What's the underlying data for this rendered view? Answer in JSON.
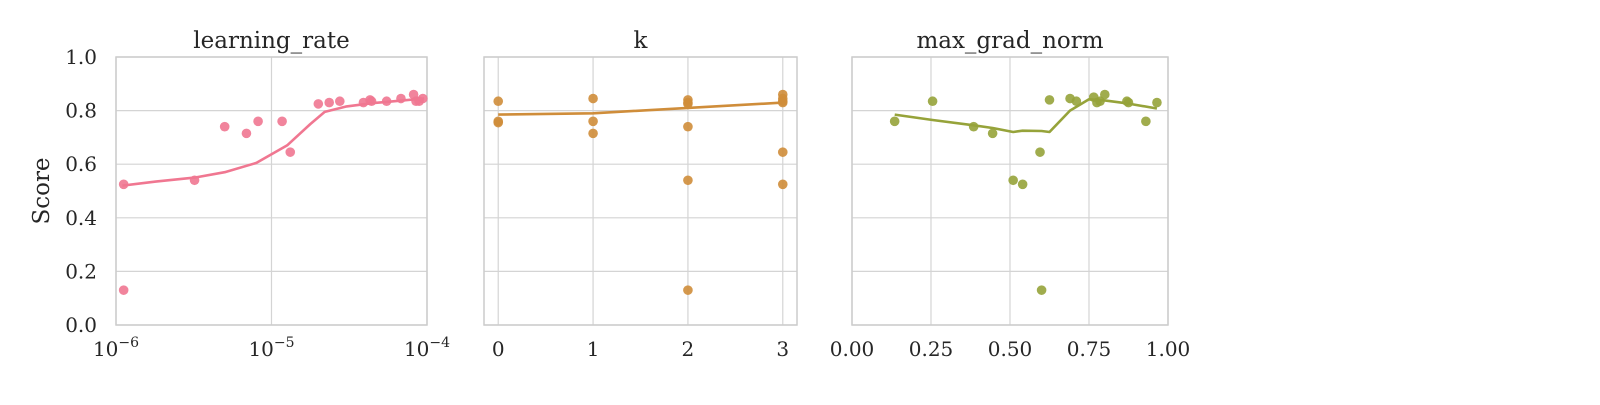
{
  "chart_data": [
    {
      "type": "scatter",
      "title": "learning_rate",
      "xlabel": "",
      "ylabel": "Score",
      "xscale": "log",
      "xlim": [
        1e-06,
        0.0001
      ],
      "ylim": [
        0,
        1
      ],
      "x_tick_labels": [
        {
          "base": "10",
          "exp": "−6"
        },
        {
          "base": "10",
          "exp": "−5"
        },
        {
          "base": "10",
          "exp": "−4"
        }
      ],
      "y_tick_labels": [
        "0.0",
        "0.2",
        "0.4",
        "0.6",
        "0.8",
        "1.0"
      ],
      "grid": true,
      "color": "#f07791",
      "points": [
        {
          "x": 1.12e-06,
          "y": 0.525
        },
        {
          "x": 1.12e-06,
          "y": 0.13
        },
        {
          "x": 3.2e-06,
          "y": 0.54
        },
        {
          "x": 5e-06,
          "y": 0.74
        },
        {
          "x": 6.9e-06,
          "y": 0.715
        },
        {
          "x": 8.2e-06,
          "y": 0.76
        },
        {
          "x": 1.17e-05,
          "y": 0.76
        },
        {
          "x": 1.32e-05,
          "y": 0.645
        },
        {
          "x": 2e-05,
          "y": 0.825
        },
        {
          "x": 2.35e-05,
          "y": 0.83
        },
        {
          "x": 2.75e-05,
          "y": 0.835
        },
        {
          "x": 3.9e-05,
          "y": 0.83
        },
        {
          "x": 4.3e-05,
          "y": 0.84
        },
        {
          "x": 4.4e-05,
          "y": 0.835
        },
        {
          "x": 5.5e-05,
          "y": 0.835
        },
        {
          "x": 6.8e-05,
          "y": 0.845
        },
        {
          "x": 8.2e-05,
          "y": 0.86
        },
        {
          "x": 8.5e-05,
          "y": 0.835
        },
        {
          "x": 8.9e-05,
          "y": 0.835
        },
        {
          "x": 9.4e-05,
          "y": 0.845
        }
      ],
      "trend": [
        {
          "x": 1.1e-06,
          "y": 0.52
        },
        {
          "x": 1.8e-06,
          "y": 0.535
        },
        {
          "x": 3.2e-06,
          "y": 0.55
        },
        {
          "x": 5e-06,
          "y": 0.57
        },
        {
          "x": 8e-06,
          "y": 0.605
        },
        {
          "x": 1.26e-05,
          "y": 0.67
        },
        {
          "x": 1.78e-05,
          "y": 0.75
        },
        {
          "x": 2.2e-05,
          "y": 0.795
        },
        {
          "x": 3e-05,
          "y": 0.815
        },
        {
          "x": 4.5e-05,
          "y": 0.828
        },
        {
          "x": 7e-05,
          "y": 0.838
        },
        {
          "x": 9.6e-05,
          "y": 0.845
        }
      ]
    },
    {
      "type": "scatter",
      "title": "k",
      "xlabel": "",
      "ylabel": "",
      "xscale": "linear",
      "xlim": [
        -0.15,
        3.15
      ],
      "ylim": [
        0,
        1
      ],
      "xticks": [
        0,
        1,
        2,
        3
      ],
      "x_tick_labels": [
        "0",
        "1",
        "2",
        "3"
      ],
      "grid": true,
      "color": "#cf8d3a",
      "points": [
        {
          "x": 0,
          "y": 0.835
        },
        {
          "x": 0,
          "y": 0.76
        },
        {
          "x": 0,
          "y": 0.755
        },
        {
          "x": 1,
          "y": 0.845
        },
        {
          "x": 1,
          "y": 0.76
        },
        {
          "x": 1,
          "y": 0.715
        },
        {
          "x": 2,
          "y": 0.84
        },
        {
          "x": 2,
          "y": 0.83
        },
        {
          "x": 2,
          "y": 0.825
        },
        {
          "x": 2,
          "y": 0.74
        },
        {
          "x": 2,
          "y": 0.54
        },
        {
          "x": 2,
          "y": 0.13
        },
        {
          "x": 3,
          "y": 0.86
        },
        {
          "x": 3,
          "y": 0.845
        },
        {
          "x": 3,
          "y": 0.835
        },
        {
          "x": 3,
          "y": 0.83
        },
        {
          "x": 3,
          "y": 0.645
        },
        {
          "x": 3,
          "y": 0.525
        }
      ],
      "trend": [
        {
          "x": 0,
          "y": 0.785
        },
        {
          "x": 1,
          "y": 0.79
        },
        {
          "x": 2,
          "y": 0.81
        },
        {
          "x": 3,
          "y": 0.83
        }
      ]
    },
    {
      "type": "scatter",
      "title": "max_grad_norm",
      "xlabel": "",
      "ylabel": "",
      "xscale": "linear",
      "xlim": [
        0.0,
        1.0
      ],
      "ylim": [
        0,
        1
      ],
      "xticks": [
        0.0,
        0.25,
        0.5,
        0.75,
        1.0
      ],
      "x_tick_labels": [
        "0.00",
        "0.25",
        "0.50",
        "0.75",
        "1.00"
      ],
      "grid": true,
      "color": "#96a33a",
      "points": [
        {
          "x": 0.135,
          "y": 0.76
        },
        {
          "x": 0.255,
          "y": 0.835
        },
        {
          "x": 0.385,
          "y": 0.74
        },
        {
          "x": 0.445,
          "y": 0.715
        },
        {
          "x": 0.51,
          "y": 0.54
        },
        {
          "x": 0.54,
          "y": 0.525
        },
        {
          "x": 0.595,
          "y": 0.645
        },
        {
          "x": 0.6,
          "y": 0.13
        },
        {
          "x": 0.625,
          "y": 0.84
        },
        {
          "x": 0.69,
          "y": 0.845
        },
        {
          "x": 0.71,
          "y": 0.835
        },
        {
          "x": 0.765,
          "y": 0.85
        },
        {
          "x": 0.775,
          "y": 0.83
        },
        {
          "x": 0.785,
          "y": 0.835
        },
        {
          "x": 0.8,
          "y": 0.86
        },
        {
          "x": 0.87,
          "y": 0.835
        },
        {
          "x": 0.875,
          "y": 0.83
        },
        {
          "x": 0.93,
          "y": 0.76
        },
        {
          "x": 0.965,
          "y": 0.83
        }
      ],
      "trend": [
        {
          "x": 0.135,
          "y": 0.785
        },
        {
          "x": 0.255,
          "y": 0.765
        },
        {
          "x": 0.385,
          "y": 0.745
        },
        {
          "x": 0.445,
          "y": 0.735
        },
        {
          "x": 0.51,
          "y": 0.72
        },
        {
          "x": 0.54,
          "y": 0.725
        },
        {
          "x": 0.6,
          "y": 0.724
        },
        {
          "x": 0.625,
          "y": 0.72
        },
        {
          "x": 0.69,
          "y": 0.8
        },
        {
          "x": 0.75,
          "y": 0.842
        },
        {
          "x": 0.8,
          "y": 0.838
        },
        {
          "x": 0.875,
          "y": 0.826
        },
        {
          "x": 0.965,
          "y": 0.808
        }
      ]
    }
  ]
}
